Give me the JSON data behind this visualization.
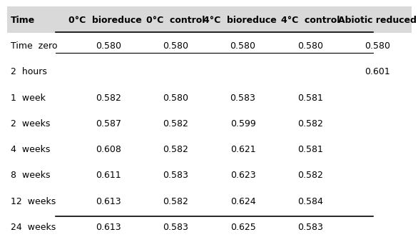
{
  "headers": [
    "Time",
    "0°C  bioreduced",
    "0°C  control",
    "4°C  bioreduced",
    "4°C  control",
    "Abiotic reduced"
  ],
  "rows": [
    [
      "Time  zero",
      "0.580",
      "0.580",
      "0.580",
      "0.580",
      "0.580"
    ],
    [
      "2  hours",
      "",
      "",
      "",
      "",
      "0.601"
    ],
    [
      "1  week",
      "0.582",
      "0.580",
      "0.583",
      "0.581",
      ""
    ],
    [
      "2  weeks",
      "0.587",
      "0.582",
      "0.599",
      "0.582",
      ""
    ],
    [
      "4  weeks",
      "0.608",
      "0.582",
      "0.621",
      "0.581",
      ""
    ],
    [
      "8  weeks",
      "0.611",
      "0.583",
      "0.623",
      "0.582",
      ""
    ],
    [
      "12  weeks",
      "0.613",
      "0.582",
      "0.624",
      "0.584",
      ""
    ],
    [
      "24  weeks",
      "0.613",
      "0.583",
      "0.625",
      "0.583",
      ""
    ]
  ],
  "header_bg": "#d9d9d9",
  "header_fontsize": 9.0,
  "cell_fontsize": 9.0,
  "fig_bg": "#ffffff",
  "header_text_color": "#000000",
  "cell_text_color": "#000000"
}
